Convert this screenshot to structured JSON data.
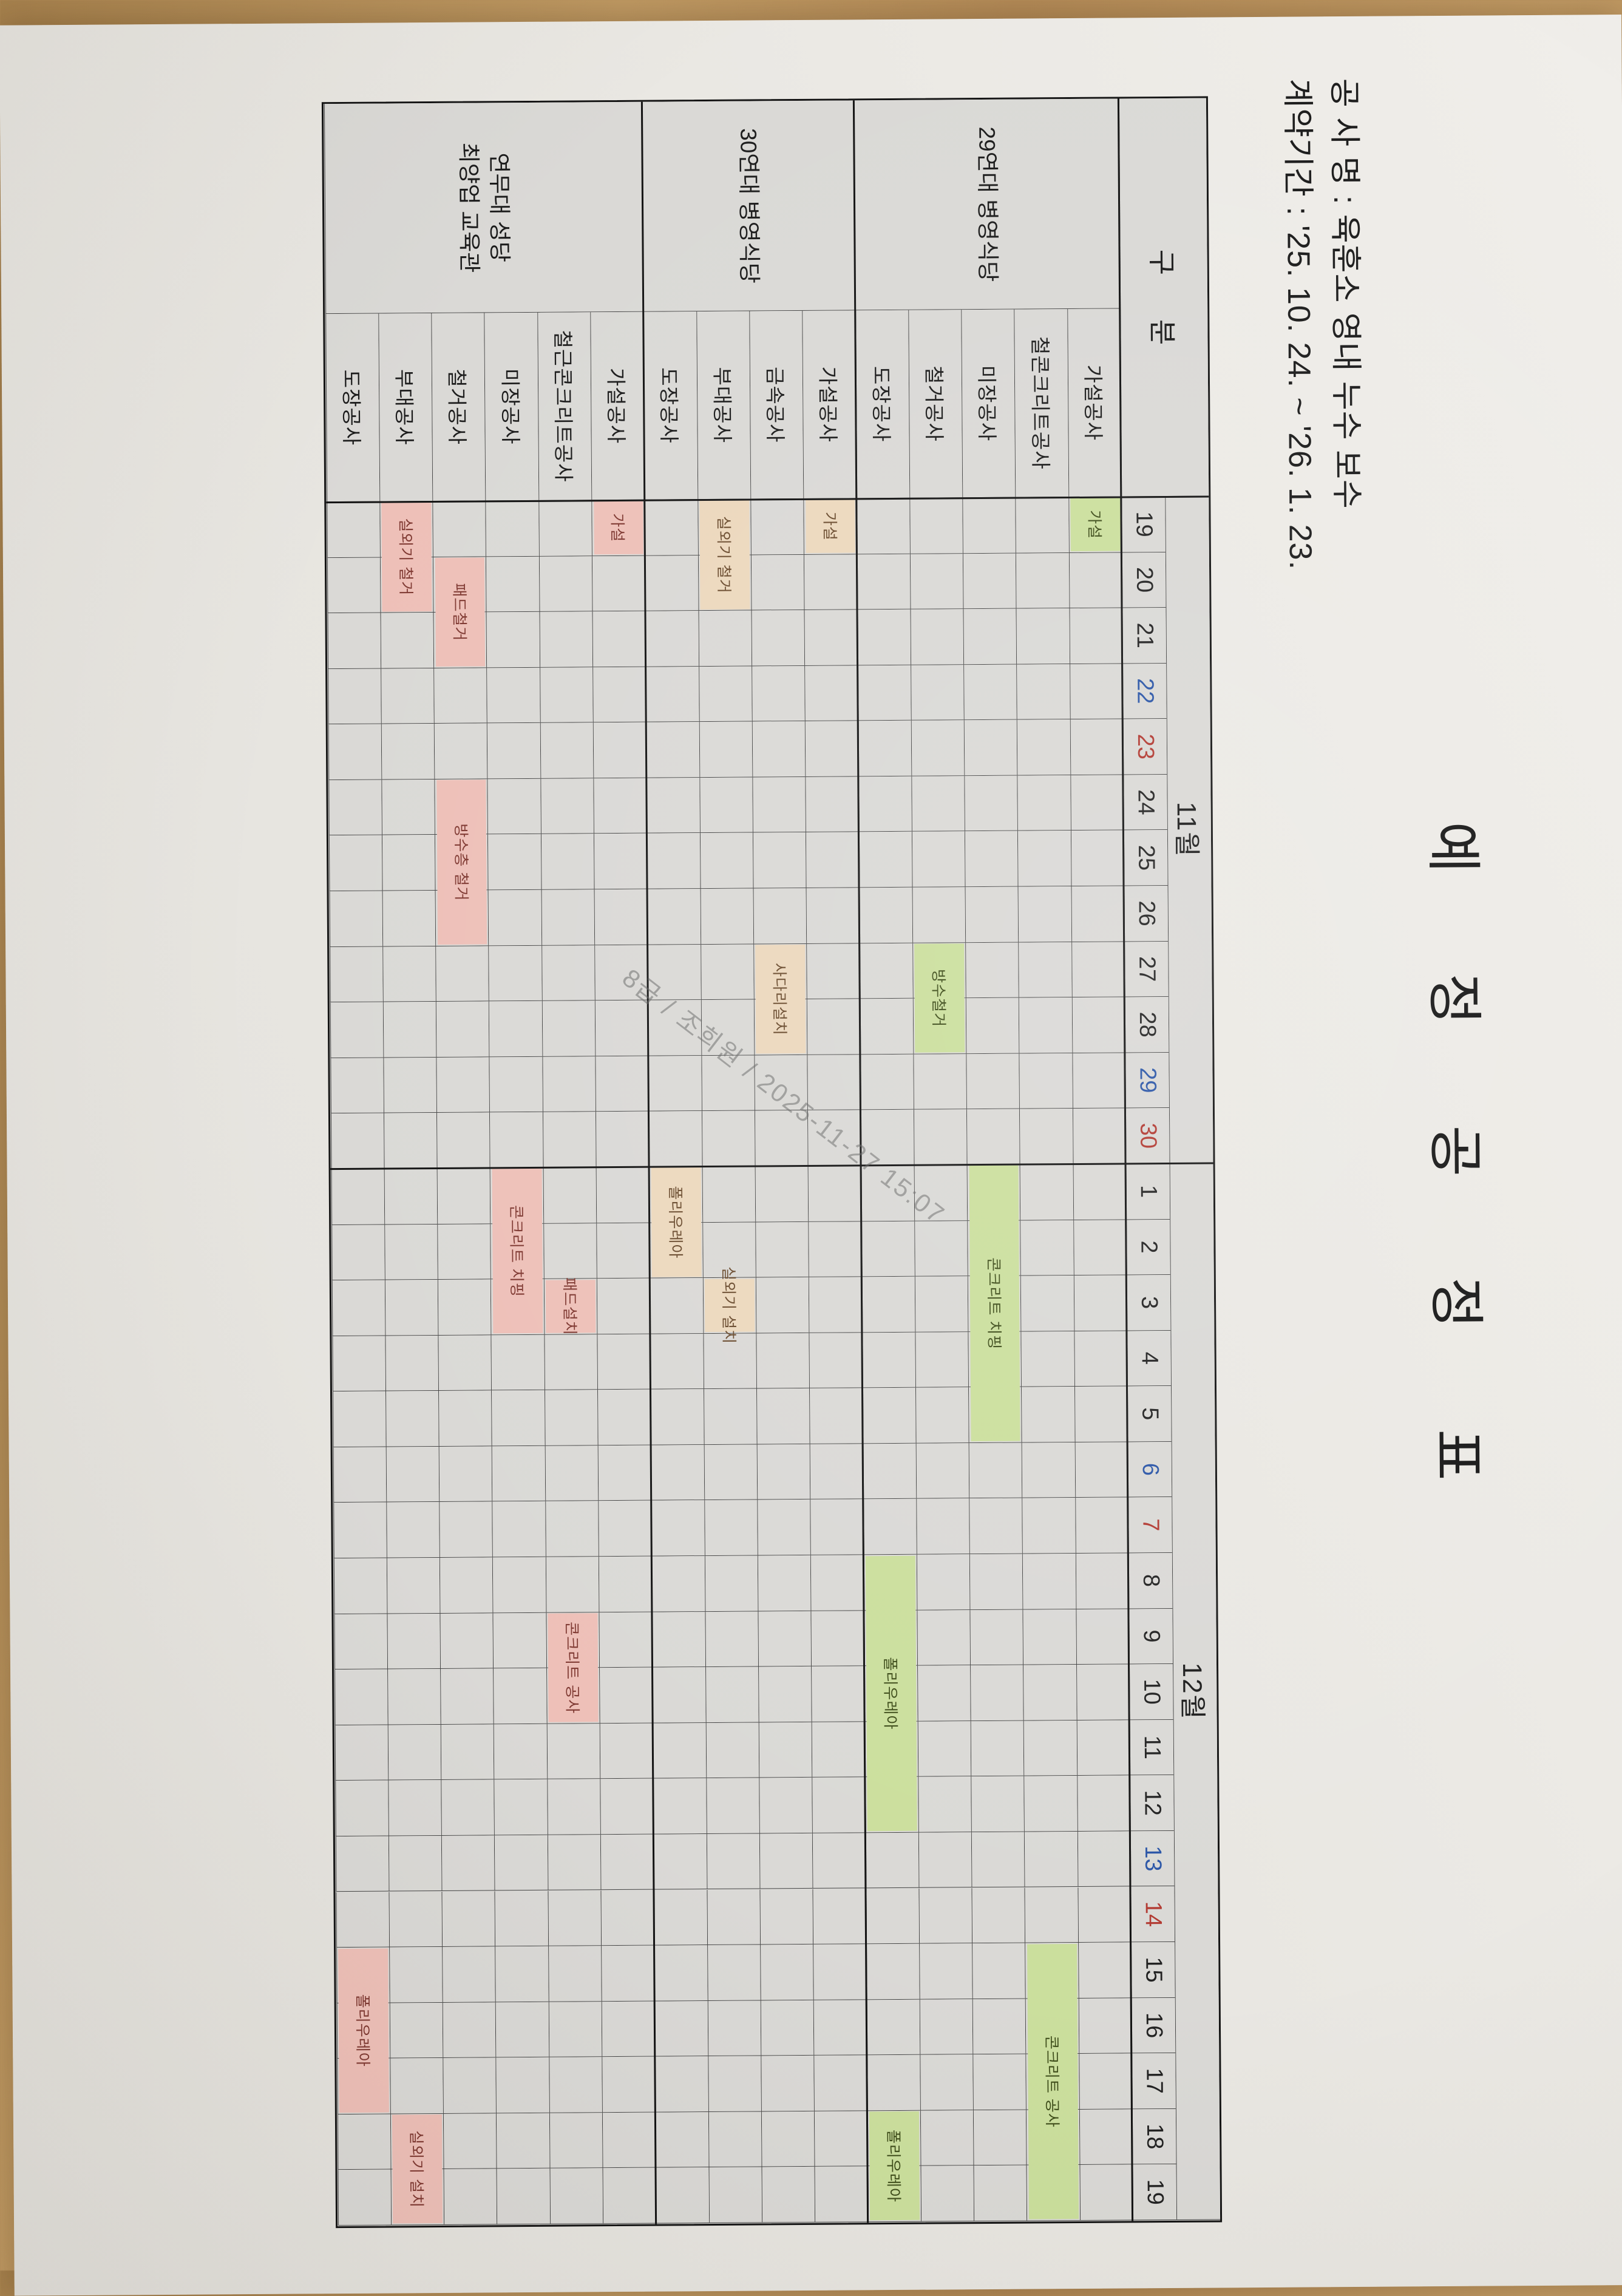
{
  "header": {
    "title": "예 정 공 정 표",
    "project_line": "공 사 명 : 육훈소 영내 누수 보수",
    "contract_line": "계약기간 : '25. 10. 24. ~ '26. 1. 23.",
    "corner_header": "구 분"
  },
  "watermark": {
    "text": "8급 / 조희원 / 2025-11-27 15:07"
  },
  "calendar": {
    "months": [
      {
        "label": "11월",
        "start": 0,
        "days": 12
      },
      {
        "label": "12월",
        "start": 12,
        "days": 19
      }
    ],
    "days": [
      {
        "d": "19",
        "t": "n"
      },
      {
        "d": "20",
        "t": "n"
      },
      {
        "d": "21",
        "t": "n"
      },
      {
        "d": "22",
        "t": "sat"
      },
      {
        "d": "23",
        "t": "sun"
      },
      {
        "d": "24",
        "t": "n"
      },
      {
        "d": "25",
        "t": "n"
      },
      {
        "d": "26",
        "t": "n"
      },
      {
        "d": "27",
        "t": "n"
      },
      {
        "d": "28",
        "t": "n"
      },
      {
        "d": "29",
        "t": "sat"
      },
      {
        "d": "30",
        "t": "sun"
      },
      {
        "d": "1",
        "t": "n"
      },
      {
        "d": "2",
        "t": "n"
      },
      {
        "d": "3",
        "t": "n"
      },
      {
        "d": "4",
        "t": "n"
      },
      {
        "d": "5",
        "t": "n"
      },
      {
        "d": "6",
        "t": "sat"
      },
      {
        "d": "7",
        "t": "sun"
      },
      {
        "d": "8",
        "t": "n"
      },
      {
        "d": "9",
        "t": "n"
      },
      {
        "d": "10",
        "t": "n"
      },
      {
        "d": "11",
        "t": "n"
      },
      {
        "d": "12",
        "t": "n"
      },
      {
        "d": "13",
        "t": "sat"
      },
      {
        "d": "14",
        "t": "sun"
      },
      {
        "d": "15",
        "t": "n"
      },
      {
        "d": "16",
        "t": "n"
      },
      {
        "d": "17",
        "t": "n"
      },
      {
        "d": "18",
        "t": "n"
      },
      {
        "d": "19",
        "t": "n"
      }
    ]
  },
  "palettes": {
    "green": {
      "fill": "#cbdf9d",
      "text": "#3e4d1a"
    },
    "tan": {
      "fill": "#ecd8bd",
      "text": "#6a4b2e"
    },
    "pink": {
      "fill": "#eec0b8",
      "text": "#7e3831"
    }
  },
  "groups": [
    {
      "name": "29연대 병영식당",
      "palette": "green",
      "rows": [
        {
          "label": "가설공사",
          "bars": [
            {
              "text": "가설",
              "start": 0,
              "len": 1
            }
          ]
        },
        {
          "label": "철콘크리트공사",
          "bars": [
            {
              "text": "콘크리트 공사",
              "start": 26,
              "len": 5
            }
          ]
        },
        {
          "label": "미장공사",
          "bars": [
            {
              "text": "콘크리트 치핑",
              "start": 12,
              "len": 5
            }
          ]
        },
        {
          "label": "철거공사",
          "bars": [
            {
              "text": "방수철거",
              "start": 8,
              "len": 2
            }
          ]
        },
        {
          "label": "도장공사",
          "bars": [
            {
              "text": "폴리우레아",
              "start": 19,
              "len": 5
            },
            {
              "text": "폴리우레아",
              "start": 29,
              "len": 2
            }
          ]
        }
      ]
    },
    {
      "name": "30연대 병영식당",
      "palette": "tan",
      "rows": [
        {
          "label": "가설공사",
          "bars": [
            {
              "text": "가설",
              "start": 0,
              "len": 1
            }
          ]
        },
        {
          "label": "금속공사",
          "bars": [
            {
              "text": "사다리설치",
              "start": 8,
              "len": 2
            }
          ]
        },
        {
          "label": "부대공사",
          "bars": [
            {
              "text": "실외기 철거",
              "start": 0,
              "len": 2
            },
            {
              "text": "실외기 설치",
              "start": 14,
              "len": 1
            }
          ]
        },
        {
          "label": "도장공사",
          "bars": [
            {
              "text": "폴리우레아",
              "start": 12,
              "len": 2
            }
          ]
        }
      ]
    },
    {
      "name": "연무대 성당\n최양업 교육관",
      "palette": "pink",
      "rows": [
        {
          "label": "가설공사",
          "bars": [
            {
              "text": "가설",
              "start": 0,
              "len": 1
            }
          ]
        },
        {
          "label": "철근콘크리트공사",
          "bars": [
            {
              "text": "패드설치",
              "start": 14,
              "len": 1
            },
            {
              "text": "콘크리트 공사",
              "start": 20,
              "len": 2
            }
          ]
        },
        {
          "label": "미장공사",
          "bars": [
            {
              "text": "콘크리트 치핑",
              "start": 12,
              "len": 3
            }
          ]
        },
        {
          "label": "철거공사",
          "bars": [
            {
              "text": "패드철거",
              "start": 1,
              "len": 2
            },
            {
              "text": "방수층 철거",
              "start": 5,
              "len": 3
            }
          ]
        },
        {
          "label": "부대공사",
          "bars": [
            {
              "text": "실외기 철거",
              "start": 0,
              "len": 2
            },
            {
              "text": "실외기 설치",
              "start": 29,
              "len": 2
            }
          ]
        },
        {
          "label": "도장공사",
          "bars": [
            {
              "text": "폴리우레아",
              "start": 26,
              "len": 3
            }
          ]
        }
      ]
    }
  ]
}
